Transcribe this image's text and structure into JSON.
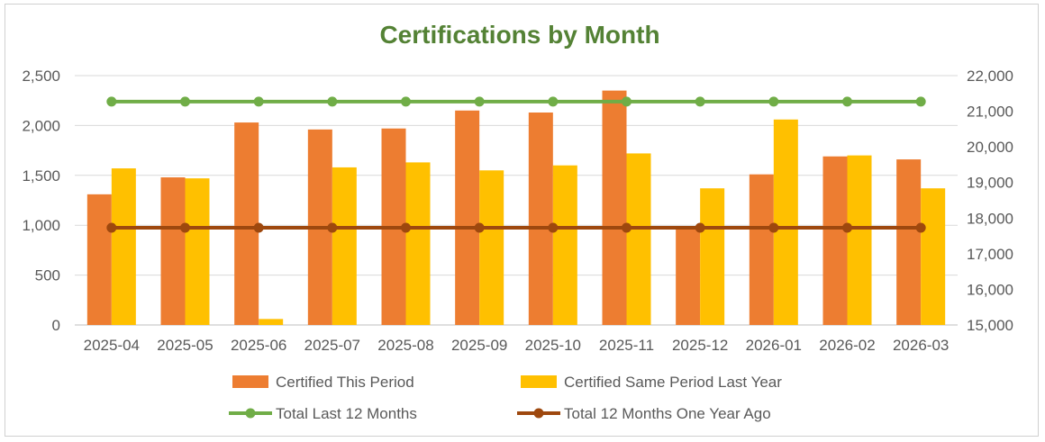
{
  "chart_data": {
    "type": "bar",
    "title": "Certifications by Month",
    "title_color": "#548235",
    "categories": [
      "2025-04",
      "2025-05",
      "2025-06",
      "2025-07",
      "2025-08",
      "2025-09",
      "2025-10",
      "2025-11",
      "2025-12",
      "2026-01",
      "2026-02",
      "2026-03"
    ],
    "series": [
      {
        "name": "Certified This Period",
        "kind": "bar",
        "axis": "left",
        "color": "#ED7D31",
        "values": [
          1310,
          1480,
          2030,
          1960,
          1970,
          2150,
          2130,
          2350,
          990,
          1510,
          1690,
          1660
        ]
      },
      {
        "name": "Certified Same Period Last Year",
        "kind": "bar",
        "axis": "left",
        "color": "#FFC000",
        "values": [
          1570,
          1470,
          60,
          1580,
          1630,
          1550,
          1600,
          1720,
          1370,
          2060,
          1700,
          1370
        ]
      },
      {
        "name": "Total Last 12 Months",
        "kind": "line",
        "axis": "right",
        "color": "#70AD47",
        "values": [
          21270,
          21270,
          21270,
          21270,
          21270,
          21270,
          21270,
          21270,
          21270,
          21270,
          21270,
          21270
        ]
      },
      {
        "name": "Total 12 Months One Year Ago",
        "kind": "line",
        "axis": "right",
        "color": "#9E480E",
        "values": [
          17730,
          17730,
          17730,
          17730,
          17730,
          17730,
          17730,
          17730,
          17730,
          17730,
          17730,
          17730
        ]
      }
    ],
    "y_left": {
      "min": 0,
      "max": 2500,
      "ticks": [
        0,
        500,
        1000,
        1500,
        2000,
        2500
      ],
      "tick_labels": [
        "0",
        "500",
        "1,000",
        "1,500",
        "2,000",
        "2,500"
      ]
    },
    "y_right": {
      "min": 15000,
      "max": 22000,
      "ticks": [
        15000,
        16000,
        17000,
        18000,
        19000,
        20000,
        21000,
        22000
      ],
      "tick_labels": [
        "15,000",
        "16,000",
        "17,000",
        "18,000",
        "19,000",
        "20,000",
        "21,000",
        "22,000"
      ]
    },
    "grid": true,
    "legend_position": "bottom"
  }
}
